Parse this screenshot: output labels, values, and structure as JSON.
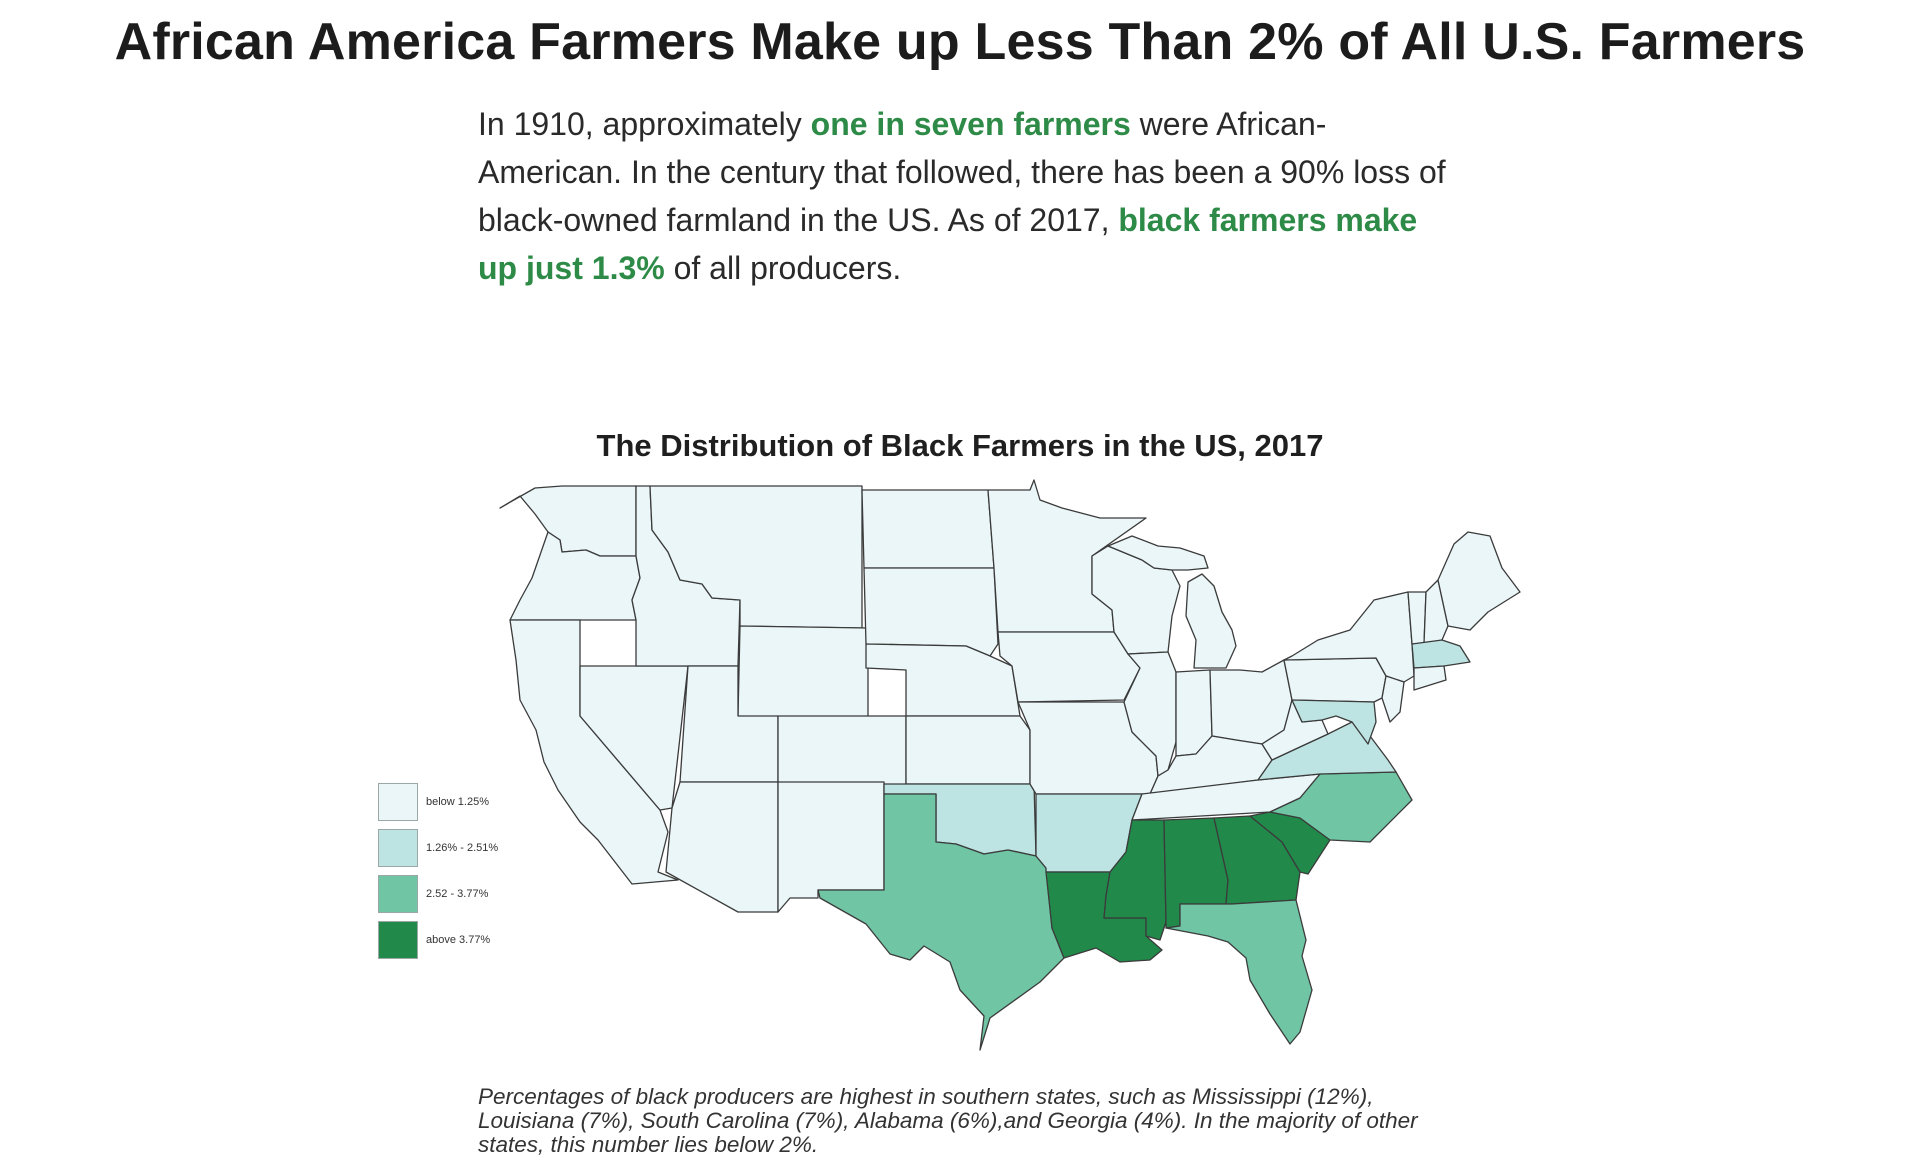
{
  "title": "African America Farmers Make up Less Than 2% of All U.S. Farmers",
  "intro": {
    "part1": "In 1910, approximately ",
    "highlight1": "one in seven farmers",
    "part2": " were African-American. In the century that followed, there has been a 90% loss of black-owned farmland in the US. As of 2017, ",
    "highlight2": "black farmers make up just 1.3%",
    "part3": " of all producers."
  },
  "map_title": "The Distribution of Black Farmers in the US, 2017",
  "colors": {
    "low": "#eaf6f8",
    "mid_low": "#bde4e2",
    "mid_high": "#6fc5a4",
    "high": "#21894a",
    "border": "#3b3b3b",
    "highlight_text": "#2e8b47"
  },
  "legend": [
    {
      "label": "below 1.25%",
      "color": "#eaf6f8"
    },
    {
      "label": "1.26% - 2.51%",
      "color": "#bde4e2"
    },
    {
      "label": "2.52 - 3.77%",
      "color": "#6fc5a4"
    },
    {
      "label": "above 3.77%",
      "color": "#21894a"
    }
  ],
  "caption": "Percentages of black producers are highest in southern states, such as Mississippi (12%), Louisiana (7%), South Carolina (7%), Alabama (6%),and Georgia (4%). In the majority of other states, this number lies below 2%."
}
